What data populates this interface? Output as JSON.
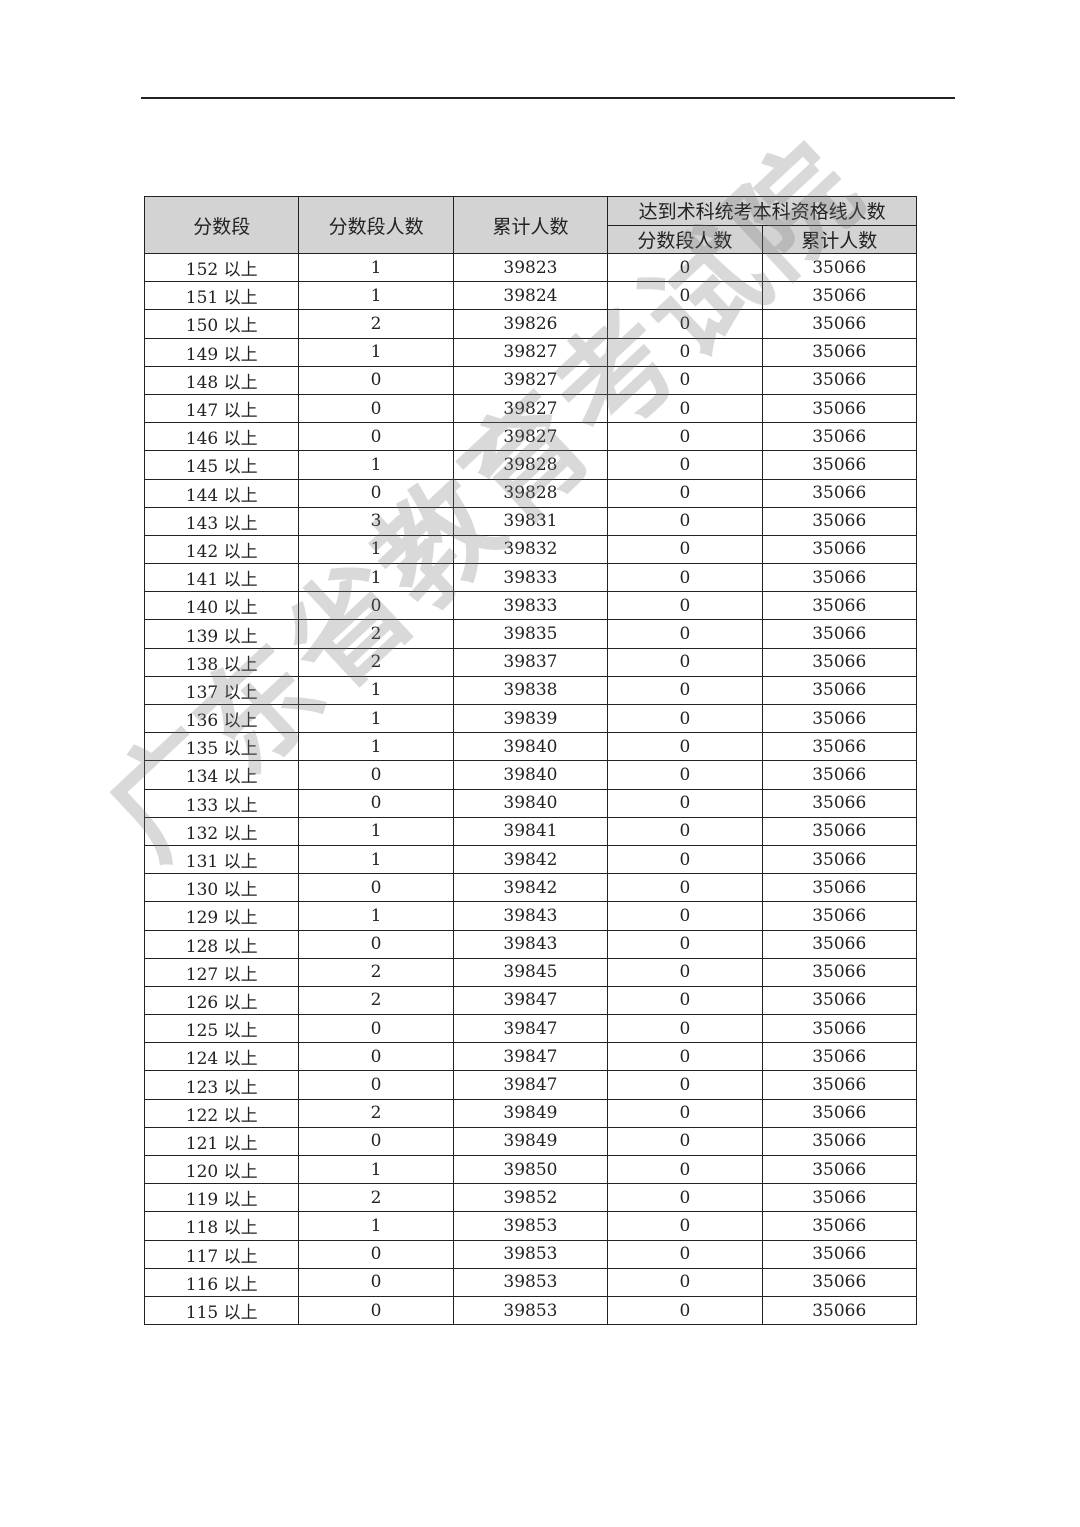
{
  "table": {
    "headers": {
      "score_band": "分数段",
      "band_count": "分数段人数",
      "cumulative": "累计人数",
      "group_title": "达到术科统考本科资格线人数",
      "sub_band_count": "分数段人数",
      "sub_cumulative": "累计人数"
    },
    "rows": [
      [
        "152 以上",
        "1",
        "39823",
        "0",
        "35066"
      ],
      [
        "151 以上",
        "1",
        "39824",
        "0",
        "35066"
      ],
      [
        "150 以上",
        "2",
        "39826",
        "0",
        "35066"
      ],
      [
        "149 以上",
        "1",
        "39827",
        "0",
        "35066"
      ],
      [
        "148 以上",
        "0",
        "39827",
        "0",
        "35066"
      ],
      [
        "147 以上",
        "0",
        "39827",
        "0",
        "35066"
      ],
      [
        "146 以上",
        "0",
        "39827",
        "0",
        "35066"
      ],
      [
        "145 以上",
        "1",
        "39828",
        "0",
        "35066"
      ],
      [
        "144 以上",
        "0",
        "39828",
        "0",
        "35066"
      ],
      [
        "143 以上",
        "3",
        "39831",
        "0",
        "35066"
      ],
      [
        "142 以上",
        "1",
        "39832",
        "0",
        "35066"
      ],
      [
        "141 以上",
        "1",
        "39833",
        "0",
        "35066"
      ],
      [
        "140 以上",
        "0",
        "39833",
        "0",
        "35066"
      ],
      [
        "139 以上",
        "2",
        "39835",
        "0",
        "35066"
      ],
      [
        "138 以上",
        "2",
        "39837",
        "0",
        "35066"
      ],
      [
        "137 以上",
        "1",
        "39838",
        "0",
        "35066"
      ],
      [
        "136 以上",
        "1",
        "39839",
        "0",
        "35066"
      ],
      [
        "135 以上",
        "1",
        "39840",
        "0",
        "35066"
      ],
      [
        "134 以上",
        "0",
        "39840",
        "0",
        "35066"
      ],
      [
        "133 以上",
        "0",
        "39840",
        "0",
        "35066"
      ],
      [
        "132 以上",
        "1",
        "39841",
        "0",
        "35066"
      ],
      [
        "131 以上",
        "1",
        "39842",
        "0",
        "35066"
      ],
      [
        "130 以上",
        "0",
        "39842",
        "0",
        "35066"
      ],
      [
        "129 以上",
        "1",
        "39843",
        "0",
        "35066"
      ],
      [
        "128 以上",
        "0",
        "39843",
        "0",
        "35066"
      ],
      [
        "127 以上",
        "2",
        "39845",
        "0",
        "35066"
      ],
      [
        "126 以上",
        "2",
        "39847",
        "0",
        "35066"
      ],
      [
        "125 以上",
        "0",
        "39847",
        "0",
        "35066"
      ],
      [
        "124 以上",
        "0",
        "39847",
        "0",
        "35066"
      ],
      [
        "123 以上",
        "0",
        "39847",
        "0",
        "35066"
      ],
      [
        "122 以上",
        "2",
        "39849",
        "0",
        "35066"
      ],
      [
        "121 以上",
        "0",
        "39849",
        "0",
        "35066"
      ],
      [
        "120 以上",
        "1",
        "39850",
        "0",
        "35066"
      ],
      [
        "119 以上",
        "2",
        "39852",
        "0",
        "35066"
      ],
      [
        "118 以上",
        "1",
        "39853",
        "0",
        "35066"
      ],
      [
        "117 以上",
        "0",
        "39853",
        "0",
        "35066"
      ],
      [
        "116 以上",
        "0",
        "39853",
        "0",
        "35066"
      ],
      [
        "115 以上",
        "0",
        "39853",
        "0",
        "35066"
      ]
    ]
  },
  "watermark": "广东省教育考试院",
  "colors": {
    "header_bg": "#d3d3d3"
  }
}
